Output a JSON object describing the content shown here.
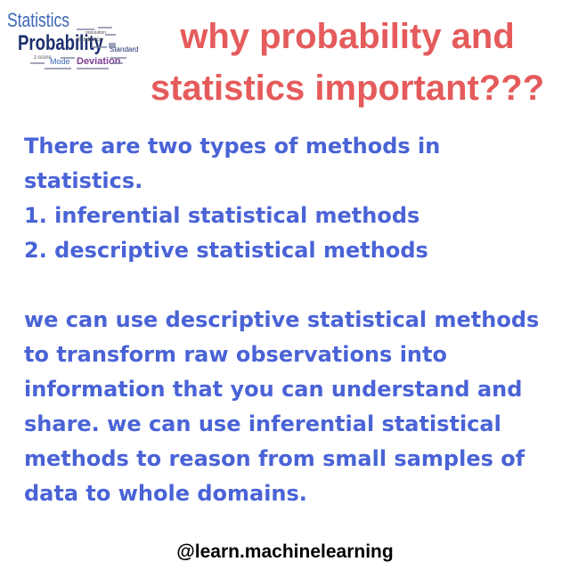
{
  "logo": {
    "words": [
      "Statistics",
      "Probability",
      "Standard",
      "Deviation",
      "Mode",
      "distribution",
      "population",
      "z-score"
    ]
  },
  "title": {
    "line1": "why probability and",
    "line2": "statistics important???"
  },
  "body": {
    "para1": [
      "There are two types of methods in",
      "statistics.",
      "1. inferential statistical methods",
      "2. descriptive statistical methods"
    ],
    "para2": [
      "we can use descriptive statistical methods",
      "to transform raw observations into",
      "information that you can understand and",
      "share. we can use inferential statistical",
      "methods to reason from small samples of",
      "data to whole domains."
    ]
  },
  "footer": {
    "handle": "@learn.machinelearning"
  },
  "colors": {
    "title": "#e55b5b",
    "body": "#4a63d6",
    "footer": "#000000"
  }
}
